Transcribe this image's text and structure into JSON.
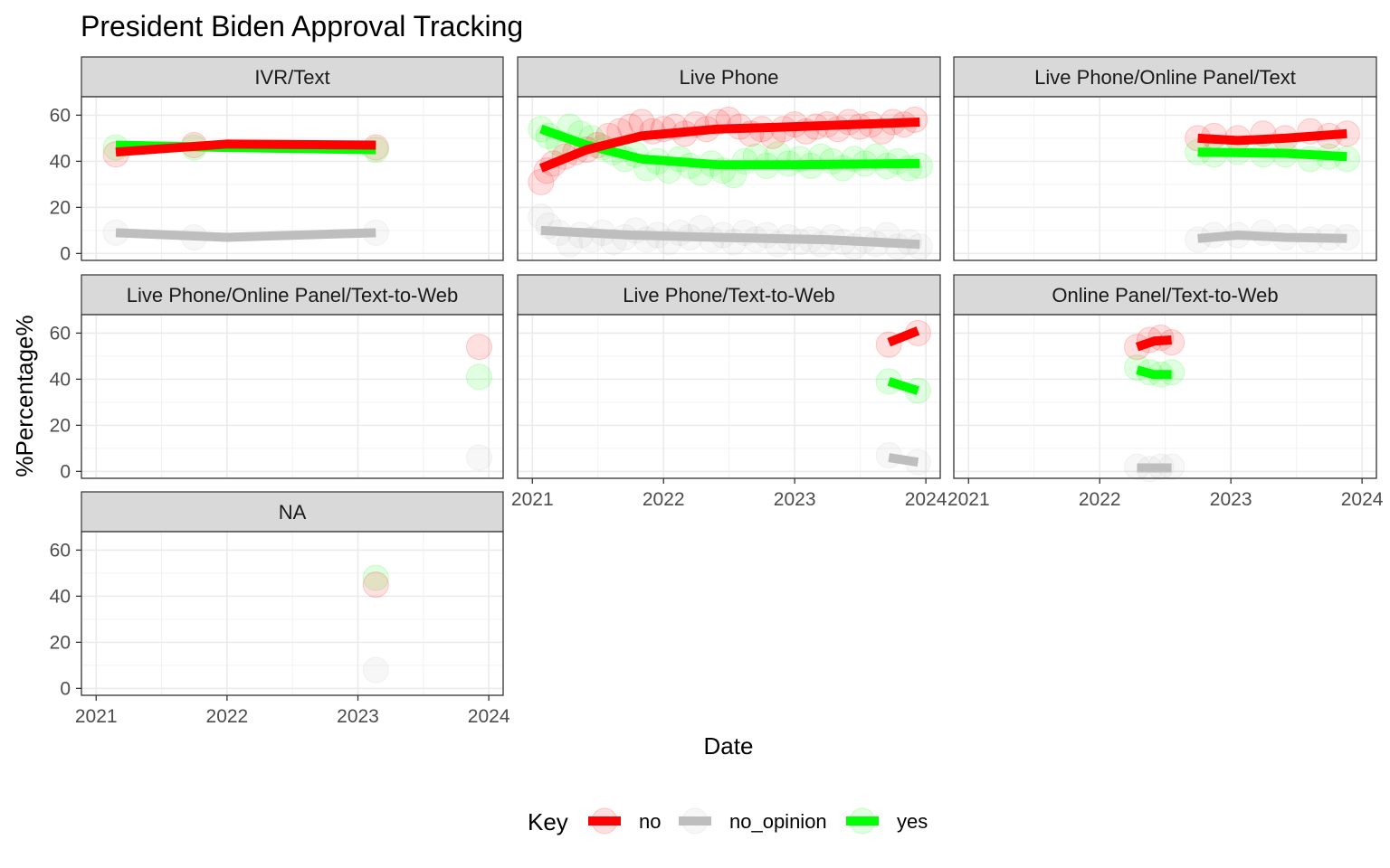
{
  "chart_data": {
    "type": "scatter",
    "title": "President Biden Approval Tracking",
    "xlabel": "Date",
    "ylabel": "%Percentage%",
    "ylim": [
      -3,
      68
    ],
    "xlim": [
      "2020-11-21",
      "2024-02-10"
    ],
    "x_ticks": [
      "2021",
      "2022",
      "2023",
      "2024"
    ],
    "y_ticks": [
      0,
      20,
      40,
      60
    ],
    "grid": true,
    "legend": {
      "title": "Key",
      "position": "bottom",
      "entries": [
        "no",
        "no_opinion",
        "yes"
      ]
    },
    "series_colors": {
      "no": "#ff0000",
      "no_opinion": "#bebebe",
      "yes": "#00ff00"
    },
    "panels": [
      {
        "name": "IVR/Text",
        "points": {
          "no": [
            [
              "2021-02-25",
              43
            ],
            [
              "2021-10-01",
              47
            ],
            [
              "2023-02-20",
              46
            ]
          ],
          "no_opinion": [
            [
              "2021-02-25",
              9
            ],
            [
              "2021-10-01",
              7
            ],
            [
              "2023-02-20",
              9
            ]
          ],
          "yes": [
            [
              "2021-02-25",
              46
            ],
            [
              "2021-10-01",
              46
            ],
            [
              "2023-02-20",
              45
            ]
          ]
        },
        "trend": {
          "no": [
            [
              "2021-02-25",
              44
            ],
            [
              "2022-01-01",
              47.5
            ],
            [
              "2023-02-20",
              47
            ]
          ],
          "no_opinion": [
            [
              "2021-02-25",
              9
            ],
            [
              "2022-01-01",
              7
            ],
            [
              "2023-02-20",
              9
            ]
          ],
          "yes": [
            [
              "2021-02-25",
              47
            ],
            [
              "2022-01-01",
              46
            ],
            [
              "2023-02-20",
              45
            ]
          ]
        }
      },
      {
        "name": "Live Phone",
        "points": {
          "no": [
            [
              "2021-01-25",
              31
            ],
            [
              "2021-02-10",
              36
            ],
            [
              "2021-03-01",
              39
            ],
            [
              "2021-04-01",
              42
            ],
            [
              "2021-05-01",
              44
            ],
            [
              "2021-06-01",
              45
            ],
            [
              "2021-07-01",
              47
            ],
            [
              "2021-08-01",
              51
            ],
            [
              "2021-09-01",
              53
            ],
            [
              "2021-10-01",
              55
            ],
            [
              "2021-11-01",
              57
            ],
            [
              "2021-12-01",
              53
            ],
            [
              "2022-01-01",
              54
            ],
            [
              "2022-02-01",
              55
            ],
            [
              "2022-03-01",
              52
            ],
            [
              "2022-04-01",
              56
            ],
            [
              "2022-05-01",
              54
            ],
            [
              "2022-06-01",
              57
            ],
            [
              "2022-07-01",
              58
            ],
            [
              "2022-08-01",
              55
            ],
            [
              "2022-09-01",
              52
            ],
            [
              "2022-10-01",
              54
            ],
            [
              "2022-11-01",
              51
            ],
            [
              "2022-12-01",
              54
            ],
            [
              "2023-01-01",
              56
            ],
            [
              "2023-02-01",
              53
            ],
            [
              "2023-03-01",
              55
            ],
            [
              "2023-04-01",
              56
            ],
            [
              "2023-05-01",
              54
            ],
            [
              "2023-06-01",
              57
            ],
            [
              "2023-07-01",
              55
            ],
            [
              "2023-08-01",
              56
            ],
            [
              "2023-09-01",
              53
            ],
            [
              "2023-10-01",
              57
            ],
            [
              "2023-11-01",
              56
            ],
            [
              "2023-12-01",
              58
            ]
          ],
          "no_opinion": [
            [
              "2021-01-25",
              16
            ],
            [
              "2021-02-15",
              12
            ],
            [
              "2021-03-15",
              9
            ],
            [
              "2021-04-15",
              4
            ],
            [
              "2021-05-15",
              8
            ],
            [
              "2021-06-15",
              6
            ],
            [
              "2021-07-15",
              9
            ],
            [
              "2021-08-15",
              5
            ],
            [
              "2021-09-15",
              7
            ],
            [
              "2021-10-15",
              10
            ],
            [
              "2021-11-15",
              6
            ],
            [
              "2021-12-15",
              8
            ],
            [
              "2022-01-15",
              5
            ],
            [
              "2022-02-15",
              9
            ],
            [
              "2022-03-15",
              7
            ],
            [
              "2022-04-15",
              11
            ],
            [
              "2022-05-15",
              6
            ],
            [
              "2022-06-15",
              8
            ],
            [
              "2022-07-15",
              5
            ],
            [
              "2022-08-15",
              9
            ],
            [
              "2022-09-15",
              6
            ],
            [
              "2022-10-15",
              8
            ],
            [
              "2022-11-15",
              4
            ],
            [
              "2022-12-15",
              7
            ],
            [
              "2023-01-15",
              5
            ],
            [
              "2023-02-15",
              6
            ],
            [
              "2023-03-15",
              4
            ],
            [
              "2023-04-15",
              7
            ],
            [
              "2023-05-15",
              5
            ],
            [
              "2023-06-15",
              3
            ],
            [
              "2023-07-15",
              6
            ],
            [
              "2023-08-15",
              4
            ],
            [
              "2023-09-15",
              8
            ],
            [
              "2023-10-15",
              3
            ],
            [
              "2023-11-15",
              5
            ],
            [
              "2023-12-15",
              3
            ]
          ],
          "yes": [
            [
              "2021-01-25",
              54
            ],
            [
              "2021-02-15",
              51
            ],
            [
              "2021-03-15",
              48
            ],
            [
              "2021-04-15",
              55
            ],
            [
              "2021-05-15",
              52
            ],
            [
              "2021-06-15",
              50
            ],
            [
              "2021-07-15",
              46
            ],
            [
              "2021-08-15",
              44
            ],
            [
              "2021-09-15",
              41
            ],
            [
              "2021-10-15",
              43
            ],
            [
              "2021-11-15",
              37
            ],
            [
              "2021-12-15",
              40
            ],
            [
              "2022-01-15",
              36
            ],
            [
              "2022-02-15",
              41
            ],
            [
              "2022-03-15",
              38
            ],
            [
              "2022-04-15",
              35
            ],
            [
              "2022-05-15",
              39
            ],
            [
              "2022-06-15",
              36
            ],
            [
              "2022-07-15",
              34
            ],
            [
              "2022-08-15",
              40
            ],
            [
              "2022-09-15",
              42
            ],
            [
              "2022-10-15",
              38
            ],
            [
              "2022-11-15",
              43
            ],
            [
              "2022-12-15",
              39
            ],
            [
              "2023-01-15",
              41
            ],
            [
              "2023-02-15",
              38
            ],
            [
              "2023-03-15",
              42
            ],
            [
              "2023-04-15",
              40
            ],
            [
              "2023-05-15",
              37
            ],
            [
              "2023-06-15",
              41
            ],
            [
              "2023-07-15",
              39
            ],
            [
              "2023-08-15",
              42
            ],
            [
              "2023-09-15",
              38
            ],
            [
              "2023-10-15",
              40
            ],
            [
              "2023-11-15",
              37
            ],
            [
              "2023-12-15",
              38
            ]
          ]
        },
        "trend": {
          "no": [
            [
              "2021-01-25",
              37
            ],
            [
              "2021-06-01",
              45
            ],
            [
              "2021-11-01",
              51
            ],
            [
              "2022-06-01",
              54
            ],
            [
              "2023-01-01",
              55
            ],
            [
              "2023-12-15",
              57
            ]
          ],
          "no_opinion": [
            [
              "2021-01-25",
              10
            ],
            [
              "2021-10-01",
              8
            ],
            [
              "2022-06-01",
              7
            ],
            [
              "2023-04-01",
              6
            ],
            [
              "2023-12-15",
              4
            ]
          ],
          "yes": [
            [
              "2021-01-25",
              54
            ],
            [
              "2021-06-01",
              47
            ],
            [
              "2021-11-01",
              41
            ],
            [
              "2022-06-01",
              38.5
            ],
            [
              "2023-01-01",
              38.5
            ],
            [
              "2023-12-15",
              39
            ]
          ]
        }
      },
      {
        "name": "Live Phone/Online Panel/Text",
        "points": {
          "no": [
            [
              "2022-10-01",
              50
            ],
            [
              "2022-11-15",
              51
            ],
            [
              "2023-01-20",
              50
            ],
            [
              "2023-04-01",
              52
            ],
            [
              "2023-06-01",
              50
            ],
            [
              "2023-08-10",
              53
            ],
            [
              "2023-10-01",
              51
            ],
            [
              "2023-11-20",
              52
            ]
          ],
          "no_opinion": [
            [
              "2022-10-01",
              6
            ],
            [
              "2022-11-15",
              8
            ],
            [
              "2023-01-20",
              8
            ],
            [
              "2023-04-01",
              9
            ],
            [
              "2023-06-01",
              7
            ],
            [
              "2023-08-10",
              6
            ],
            [
              "2023-10-01",
              7
            ],
            [
              "2023-11-20",
              7
            ]
          ],
          "yes": [
            [
              "2022-10-01",
              44
            ],
            [
              "2022-11-15",
              43
            ],
            [
              "2023-01-20",
              44
            ],
            [
              "2023-04-01",
              43
            ],
            [
              "2023-06-01",
              43
            ],
            [
              "2023-08-10",
              41
            ],
            [
              "2023-10-01",
              42
            ],
            [
              "2023-11-20",
              41
            ]
          ]
        },
        "trend": {
          "no": [
            [
              "2022-10-01",
              50
            ],
            [
              "2023-01-20",
              49
            ],
            [
              "2023-06-01",
              50
            ],
            [
              "2023-11-20",
              52
            ]
          ],
          "no_opinion": [
            [
              "2022-10-01",
              6.5
            ],
            [
              "2023-01-20",
              8
            ],
            [
              "2023-06-01",
              7
            ],
            [
              "2023-11-20",
              6.5
            ]
          ],
          "yes": [
            [
              "2022-10-01",
              44
            ],
            [
              "2023-06-01",
              43.5
            ],
            [
              "2023-11-20",
              42
            ]
          ]
        }
      },
      {
        "name": "Live Phone/Online Panel/Text-to-Web",
        "points": {
          "no": [
            [
              "2023-12-05",
              54
            ]
          ],
          "no_opinion": [
            [
              "2023-12-05",
              6
            ]
          ],
          "yes": [
            [
              "2023-12-05",
              41
            ]
          ]
        },
        "trend": {}
      },
      {
        "name": "Live Phone/Text-to-Web",
        "points": {
          "no": [
            [
              "2023-09-20",
              55
            ],
            [
              "2023-12-10",
              60
            ]
          ],
          "no_opinion": [
            [
              "2023-09-20",
              7
            ],
            [
              "2023-12-10",
              4
            ]
          ],
          "yes": [
            [
              "2023-09-20",
              39
            ],
            [
              "2023-12-10",
              35
            ]
          ]
        },
        "trend": {
          "no": [
            [
              "2023-09-20",
              56
            ],
            [
              "2023-12-10",
              61
            ]
          ],
          "no_opinion": [
            [
              "2023-09-20",
              6
            ],
            [
              "2023-12-10",
              4
            ]
          ],
          "yes": [
            [
              "2023-09-20",
              39
            ],
            [
              "2023-12-10",
              35
            ]
          ]
        }
      },
      {
        "name": "Online Panel/Text-to-Web",
        "points": {
          "no": [
            [
              "2022-04-15",
              54
            ],
            [
              "2022-05-20",
              57
            ],
            [
              "2022-06-20",
              58
            ],
            [
              "2022-07-20",
              56
            ]
          ],
          "no_opinion": [
            [
              "2022-04-15",
              2
            ],
            [
              "2022-05-20",
              1
            ],
            [
              "2022-06-20",
              2
            ],
            [
              "2022-07-20",
              2
            ]
          ],
          "yes": [
            [
              "2022-04-15",
              45
            ],
            [
              "2022-05-20",
              43
            ],
            [
              "2022-06-20",
              42
            ],
            [
              "2022-07-20",
              43
            ]
          ]
        },
        "trend": {
          "no": [
            [
              "2022-04-15",
              54
            ],
            [
              "2022-06-01",
              56.5
            ],
            [
              "2022-07-20",
              57
            ]
          ],
          "no_opinion": [
            [
              "2022-04-15",
              1.5
            ],
            [
              "2022-07-20",
              1.5
            ]
          ],
          "yes": [
            [
              "2022-04-15",
              44
            ],
            [
              "2022-06-01",
              42
            ],
            [
              "2022-07-20",
              42
            ]
          ]
        }
      },
      {
        "name": "NA",
        "points": {
          "no": [
            [
              "2023-02-20",
              45
            ]
          ],
          "no_opinion": [
            [
              "2023-02-20",
              8
            ]
          ],
          "yes": [
            [
              "2023-02-20",
              48
            ]
          ]
        },
        "trend": {}
      }
    ]
  }
}
